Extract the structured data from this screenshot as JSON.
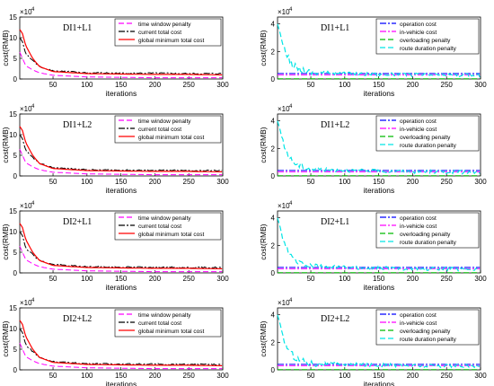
{
  "figure": {
    "ylabel": "cost(RMB)",
    "xlabel": "iterations",
    "exponent": "×10",
    "exponent_power": "4",
    "x_ticks": [
      50,
      100,
      150,
      200,
      250,
      300
    ]
  },
  "chart_data": [
    {
      "type": "line",
      "annotation": "DI1+L1",
      "xlabel": "iterations",
      "ylabel": "cost(RMB)",
      "xlim": [
        1,
        300
      ],
      "ylim": [
        0,
        15000
      ],
      "y_ticks": [
        "0",
        "5",
        "10",
        "15"
      ],
      "legend_position": "top-right",
      "series": [
        {
          "name": "time window penalty",
          "color": "#ff00ff",
          "dash": "dashed",
          "x": [
            1,
            5,
            10,
            20,
            30,
            50,
            100,
            150,
            200,
            250,
            300
          ],
          "y": [
            6500,
            5000,
            3200,
            2200,
            1500,
            900,
            500,
            400,
            300,
            300,
            300
          ]
        },
        {
          "name": "current total cost",
          "color": "#000000",
          "dash": "dashdot",
          "x": [
            1,
            5,
            10,
            20,
            30,
            50,
            100,
            150,
            200,
            250,
            300
          ],
          "y": [
            10000,
            9000,
            6000,
            4500,
            3000,
            2000,
            1500,
            1400,
            1400,
            1300,
            1300
          ]
        },
        {
          "name": "global minimum total cost",
          "color": "#ff0000",
          "dash": "solid",
          "x": [
            1,
            5,
            10,
            20,
            30,
            50,
            100,
            150,
            200,
            250,
            300
          ],
          "y": [
            12000,
            11000,
            8000,
            5000,
            3000,
            1800,
            1300,
            1200,
            1100,
            1100,
            1000
          ]
        }
      ]
    },
    {
      "type": "line",
      "annotation": "DI1+L1",
      "xlabel": "iterations",
      "ylabel": "cost(RMB)",
      "xlim": [
        1,
        300
      ],
      "ylim": [
        0,
        45000
      ],
      "y_ticks": [
        "0",
        "2",
        "4"
      ],
      "legend_position": "top-right",
      "series": [
        {
          "name": "operation cost",
          "color": "#0000ff",
          "dash": "dashdot",
          "x": [
            1,
            300
          ],
          "y": [
            4000,
            4000
          ]
        },
        {
          "name": "in-vehicle cost",
          "color": "#ff00ff",
          "dash": "dashdot",
          "x": [
            1,
            300
          ],
          "y": [
            3000,
            3000
          ]
        },
        {
          "name": "overloading penalty",
          "color": "#00bb00",
          "dash": "dashed",
          "x": [
            1,
            300
          ],
          "y": [
            100,
            100
          ]
        },
        {
          "name": "route duration penalty",
          "color": "#00e5e5",
          "dash": "dashed",
          "x": [
            1,
            5,
            10,
            20,
            30,
            50,
            100,
            150,
            200,
            250,
            300
          ],
          "y": [
            40000,
            33000,
            22000,
            12000,
            8000,
            5000,
            4000,
            3500,
            3000,
            3000,
            2500
          ]
        }
      ]
    },
    {
      "type": "line",
      "annotation": "DI1+L2",
      "xlabel": "iterations",
      "ylabel": "cost(RMB)",
      "xlim": [
        1,
        300
      ],
      "ylim": [
        0,
        15000
      ],
      "y_ticks": [
        "0",
        "5",
        "10",
        "15"
      ],
      "legend_position": "top-right",
      "series": [
        {
          "name": "time window penalty",
          "color": "#ff00ff",
          "dash": "dashed",
          "x": [
            1,
            5,
            10,
            20,
            30,
            50,
            100,
            150,
            200,
            250,
            300
          ],
          "y": [
            6500,
            5000,
            3200,
            2200,
            1500,
            900,
            500,
            400,
            300,
            300,
            300
          ]
        },
        {
          "name": "current total cost",
          "color": "#000000",
          "dash": "dashdot",
          "x": [
            1,
            5,
            10,
            20,
            30,
            50,
            100,
            150,
            200,
            250,
            300
          ],
          "y": [
            10000,
            9000,
            6000,
            4500,
            3000,
            2000,
            1500,
            1400,
            1400,
            1300,
            1300
          ]
        },
        {
          "name": "global minimum total cost",
          "color": "#ff0000",
          "dash": "solid",
          "x": [
            1,
            5,
            10,
            20,
            30,
            50,
            100,
            150,
            200,
            250,
            300
          ],
          "y": [
            12000,
            11000,
            8000,
            5000,
            3000,
            1800,
            1300,
            1200,
            1100,
            1100,
            1000
          ]
        }
      ]
    },
    {
      "type": "line",
      "annotation": "DI1+L2",
      "xlabel": "iterations",
      "ylabel": "cost(RMB)",
      "xlim": [
        1,
        300
      ],
      "ylim": [
        0,
        45000
      ],
      "y_ticks": [
        "0",
        "2",
        "4"
      ],
      "legend_position": "top-right",
      "series": [
        {
          "name": "operation cost",
          "color": "#0000ff",
          "dash": "dashdot",
          "x": [
            1,
            300
          ],
          "y": [
            4000,
            4000
          ]
        },
        {
          "name": "in-vehicle cost",
          "color": "#ff00ff",
          "dash": "dashdot",
          "x": [
            1,
            300
          ],
          "y": [
            3000,
            3000
          ]
        },
        {
          "name": "overloading penalty",
          "color": "#00bb00",
          "dash": "dashed",
          "x": [
            1,
            300
          ],
          "y": [
            100,
            100
          ]
        },
        {
          "name": "route duration penalty",
          "color": "#00e5e5",
          "dash": "dashed",
          "x": [
            1,
            5,
            10,
            20,
            30,
            50,
            100,
            150,
            200,
            250,
            300
          ],
          "y": [
            40000,
            33000,
            22000,
            12000,
            8000,
            5000,
            4000,
            3500,
            3000,
            3000,
            2500
          ]
        }
      ]
    },
    {
      "type": "line",
      "annotation": "DI2+L1",
      "xlabel": "iterations",
      "ylabel": "cost(RMB)",
      "xlim": [
        1,
        300
      ],
      "ylim": [
        0,
        15000
      ],
      "y_ticks": [
        "0",
        "5",
        "10",
        "15"
      ],
      "legend_position": "top-right",
      "series": [
        {
          "name": "time window penalty",
          "color": "#ff00ff",
          "dash": "dashed",
          "x": [
            1,
            5,
            10,
            20,
            30,
            50,
            100,
            150,
            200,
            250,
            300
          ],
          "y": [
            6500,
            5000,
            3200,
            2200,
            1500,
            900,
            500,
            400,
            300,
            300,
            300
          ]
        },
        {
          "name": "current total cost",
          "color": "#000000",
          "dash": "dashdot",
          "x": [
            1,
            5,
            10,
            20,
            30,
            50,
            100,
            150,
            200,
            250,
            300
          ],
          "y": [
            10000,
            9000,
            6000,
            4500,
            3000,
            2000,
            1500,
            1400,
            1400,
            1300,
            1300
          ]
        },
        {
          "name": "global minimum total cost",
          "color": "#ff0000",
          "dash": "solid",
          "x": [
            1,
            5,
            10,
            20,
            30,
            50,
            100,
            150,
            200,
            250,
            300
          ],
          "y": [
            12000,
            11000,
            8000,
            5000,
            3000,
            1800,
            1300,
            1200,
            1100,
            1100,
            1000
          ]
        }
      ]
    },
    {
      "type": "line",
      "annotation": "DI2+L1",
      "xlabel": "iterations",
      "ylabel": "cost(RMB)",
      "xlim": [
        1,
        300
      ],
      "ylim": [
        0,
        45000
      ],
      "y_ticks": [
        "0",
        "2",
        "4"
      ],
      "legend_position": "top-right",
      "series": [
        {
          "name": "operation cost",
          "color": "#0000ff",
          "dash": "dashdot",
          "x": [
            1,
            300
          ],
          "y": [
            4000,
            4000
          ]
        },
        {
          "name": "in-vehicle cost",
          "color": "#ff00ff",
          "dash": "dashdot",
          "x": [
            1,
            300
          ],
          "y": [
            3000,
            3000
          ]
        },
        {
          "name": "overloading penalty",
          "color": "#00bb00",
          "dash": "dashed",
          "x": [
            1,
            300
          ],
          "y": [
            100,
            100
          ]
        },
        {
          "name": "route duration penalty",
          "color": "#00e5e5",
          "dash": "dashed",
          "x": [
            1,
            5,
            10,
            20,
            30,
            50,
            100,
            150,
            200,
            250,
            300
          ],
          "y": [
            40000,
            33000,
            22000,
            12000,
            8000,
            5000,
            4000,
            3500,
            3000,
            3000,
            2500
          ]
        }
      ]
    },
    {
      "type": "line",
      "annotation": "DI2+L2",
      "xlabel": "iterations",
      "ylabel": "cost(RMB)",
      "xlim": [
        1,
        300
      ],
      "ylim": [
        0,
        15000
      ],
      "y_ticks": [
        "0",
        "5",
        "10",
        "15"
      ],
      "legend_position": "top-right",
      "series": [
        {
          "name": "time window penalty",
          "color": "#ff00ff",
          "dash": "dashed",
          "x": [
            1,
            5,
            10,
            20,
            30,
            50,
            100,
            150,
            200,
            250,
            300
          ],
          "y": [
            6500,
            5000,
            3200,
            2200,
            1500,
            900,
            500,
            400,
            300,
            300,
            300
          ]
        },
        {
          "name": "current total cost",
          "color": "#000000",
          "dash": "dashdot",
          "x": [
            1,
            5,
            10,
            20,
            30,
            50,
            100,
            150,
            200,
            250,
            300
          ],
          "y": [
            10000,
            9000,
            6000,
            4500,
            3000,
            2000,
            1500,
            1400,
            1400,
            1300,
            1300
          ]
        },
        {
          "name": "global minimum total cost",
          "color": "#ff0000",
          "dash": "solid",
          "x": [
            1,
            5,
            10,
            20,
            30,
            50,
            100,
            150,
            200,
            250,
            300
          ],
          "y": [
            12000,
            11000,
            8000,
            5000,
            3000,
            1800,
            1300,
            1200,
            1100,
            1100,
            1000
          ]
        }
      ]
    },
    {
      "type": "line",
      "annotation": "DI2+L2",
      "xlabel": "iterations",
      "ylabel": "cost(RMB)",
      "xlim": [
        1,
        300
      ],
      "ylim": [
        0,
        45000
      ],
      "y_ticks": [
        "0",
        "2",
        "4"
      ],
      "legend_position": "top-right",
      "series": [
        {
          "name": "operation cost",
          "color": "#0000ff",
          "dash": "dashdot",
          "x": [
            1,
            300
          ],
          "y": [
            4000,
            4000
          ]
        },
        {
          "name": "in-vehicle cost",
          "color": "#ff00ff",
          "dash": "dashdot",
          "x": [
            1,
            300
          ],
          "y": [
            3000,
            3000
          ]
        },
        {
          "name": "overloading penalty",
          "color": "#00bb00",
          "dash": "dashed",
          "x": [
            1,
            300
          ],
          "y": [
            100,
            100
          ]
        },
        {
          "name": "route duration penalty",
          "color": "#00e5e5",
          "dash": "dashed",
          "x": [
            1,
            5,
            10,
            20,
            30,
            50,
            100,
            150,
            200,
            250,
            300
          ],
          "y": [
            40000,
            33000,
            22000,
            12000,
            8000,
            5000,
            4000,
            3500,
            3000,
            3000,
            2500
          ]
        }
      ]
    }
  ]
}
